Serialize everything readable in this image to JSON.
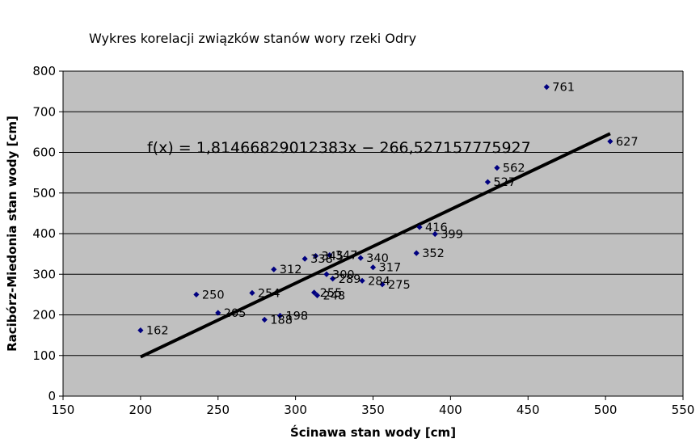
{
  "chart_data": {
    "type": "scatter",
    "title": "Wykres korelacji związków stanów wory rzeki Odry",
    "xlabel": "Ścinawa stan wody [cm]",
    "ylabel": "Racibórz-Miedonia stan wody [cm]",
    "xlim": [
      150,
      550
    ],
    "ylim": [
      0,
      800
    ],
    "x_ticks": [
      150,
      200,
      250,
      300,
      350,
      400,
      450,
      500,
      550
    ],
    "y_ticks": [
      0,
      100,
      200,
      300,
      400,
      500,
      600,
      700,
      800
    ],
    "grid": "horizontal",
    "background_color": "#c0c0c0",
    "marker_color": "#000080",
    "trendline_color": "#000000",
    "points": [
      {
        "x": 200,
        "y": 162,
        "label": "162"
      },
      {
        "x": 236,
        "y": 250,
        "label": "250"
      },
      {
        "x": 250,
        "y": 205,
        "label": "205"
      },
      {
        "x": 272,
        "y": 254,
        "label": "254"
      },
      {
        "x": 280,
        "y": 188,
        "label": "188"
      },
      {
        "x": 286,
        "y": 312,
        "label": "312"
      },
      {
        "x": 290,
        "y": 198,
        "label": "198"
      },
      {
        "x": 306,
        "y": 338,
        "label": "338"
      },
      {
        "x": 312,
        "y": 255,
        "label": "255"
      },
      {
        "x": 313,
        "y": 345,
        "label": "345"
      },
      {
        "x": 314,
        "y": 248,
        "label": "248"
      },
      {
        "x": 320,
        "y": 300,
        "label": "300"
      },
      {
        "x": 322,
        "y": 347,
        "label": "347"
      },
      {
        "x": 324,
        "y": 289,
        "label": "289"
      },
      {
        "x": 342,
        "y": 340,
        "label": "340"
      },
      {
        "x": 343,
        "y": 284,
        "label": "284"
      },
      {
        "x": 350,
        "y": 317,
        "label": "317"
      },
      {
        "x": 356,
        "y": 275,
        "label": "275"
      },
      {
        "x": 378,
        "y": 352,
        "label": "352"
      },
      {
        "x": 380,
        "y": 416,
        "label": "416"
      },
      {
        "x": 390,
        "y": 399,
        "label": "399"
      },
      {
        "x": 424,
        "y": 527,
        "label": "527"
      },
      {
        "x": 430,
        "y": 562,
        "label": "562"
      },
      {
        "x": 462,
        "y": 761,
        "label": "761"
      },
      {
        "x": 503,
        "y": 627,
        "label": "627"
      }
    ],
    "trendline": {
      "slope": 1.81466829012383,
      "intercept": -266.527157775927,
      "x_range": [
        200,
        503
      ],
      "equation": "f(x) = 1,81466829012383x − 266,527157775927"
    }
  }
}
